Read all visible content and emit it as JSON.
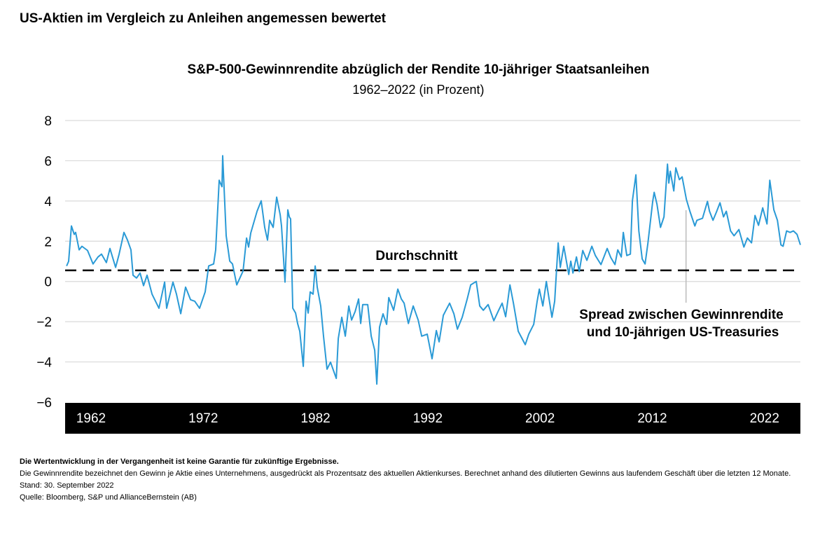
{
  "page_title": "US-Aktien im Vergleich zu Anleihen angemessen bewertet",
  "footer": {
    "disclaimer": "Die Wertentwicklung in der Vergangenheit ist keine Garantie für zukünftige Ergebnisse.",
    "note": "Die Gewinnrendite bezeichnet den Gewinn je Aktie eines Unternehmens, ausgedrückt als Prozentsatz des aktuellen Aktienkurses. Berechnet anhand des dilutierten Gewinns aus laufendem Geschäft über die letzten 12 Monate.",
    "date": "Stand: 30. September 2022",
    "source": "Quelle: Bloomberg, S&P und AllianceBernstein (AB)"
  },
  "chart_data": {
    "type": "line",
    "title": "S&P-500-Gewinnrendite abzüglich der Rendite 10-jähriger Staatsanleihen",
    "subtitle": "1962–2022 (in Prozent)",
    "xlabel": "",
    "ylabel": "",
    "xlim": [
      1962,
      2022.75
    ],
    "ylim": [
      -6,
      8
    ],
    "y_ticks": [
      "8",
      "6",
      "4",
      "2",
      "0",
      "−2",
      "−4",
      "−6"
    ],
    "y_tick_values": [
      8,
      6,
      4,
      2,
      0,
      -2,
      -4,
      -6
    ],
    "x_ticks": [
      "1962",
      "1972",
      "1982",
      "1992",
      "2002",
      "2012",
      "2022"
    ],
    "grid": "horizontal",
    "line_color": "#2a9ad6",
    "average": {
      "label": "Durchschnitt",
      "value": 0.55
    },
    "annotation": {
      "line1": "Spread zwischen Gewinnrendite",
      "line2": "und 10-jährigen US-Treasuries",
      "x": 2013.3
    },
    "series": [
      {
        "points": [
          [
            1962.12,
            0.77
          ],
          [
            1962.29,
            1.0
          ],
          [
            1962.52,
            2.76
          ],
          [
            1962.75,
            2.34
          ],
          [
            1962.87,
            2.44
          ],
          [
            1963.16,
            1.57
          ],
          [
            1963.39,
            1.75
          ],
          [
            1963.85,
            1.54
          ],
          [
            1964.31,
            0.87
          ],
          [
            1964.72,
            1.22
          ],
          [
            1965.01,
            1.36
          ],
          [
            1965.41,
            0.94
          ],
          [
            1965.7,
            1.64
          ],
          [
            1966.17,
            0.7
          ],
          [
            1966.46,
            1.36
          ],
          [
            1966.86,
            2.44
          ],
          [
            1967.15,
            2.06
          ],
          [
            1967.44,
            1.57
          ],
          [
            1967.61,
            0.31
          ],
          [
            1967.9,
            0.17
          ],
          [
            1968.19,
            0.42
          ],
          [
            1968.48,
            -0.21
          ],
          [
            1968.77,
            0.31
          ],
          [
            1969.18,
            -0.63
          ],
          [
            1969.75,
            -1.33
          ],
          [
            1970.22,
            -0.03
          ],
          [
            1970.39,
            -1.33
          ],
          [
            1970.91,
            -0.03
          ],
          [
            1971.2,
            -0.63
          ],
          [
            1971.55,
            -1.6
          ],
          [
            1971.95,
            -0.28
          ],
          [
            1972.36,
            -0.91
          ],
          [
            1972.71,
            -0.98
          ],
          [
            1973.11,
            -1.33
          ],
          [
            1973.57,
            -0.52
          ],
          [
            1973.86,
            0.77
          ],
          [
            1974.27,
            0.87
          ],
          [
            1974.44,
            1.57
          ],
          [
            1974.73,
            5.03
          ],
          [
            1974.96,
            4.71
          ],
          [
            1975.02,
            6.25
          ],
          [
            1975.31,
            2.27
          ],
          [
            1975.6,
            1.01
          ],
          [
            1975.83,
            0.87
          ],
          [
            1976.18,
            -0.17
          ],
          [
            1976.7,
            0.52
          ],
          [
            1976.99,
            2.16
          ],
          [
            1977.16,
            1.71
          ],
          [
            1977.34,
            2.41
          ],
          [
            1977.86,
            3.49
          ],
          [
            1978.2,
            4.01
          ],
          [
            1978.49,
            2.69
          ],
          [
            1978.72,
            2.06
          ],
          [
            1978.9,
            3.04
          ],
          [
            1979.19,
            2.69
          ],
          [
            1979.48,
            4.19
          ],
          [
            1979.77,
            3.32
          ],
          [
            1979.88,
            2.76
          ],
          [
            1980.17,
            -0.03
          ],
          [
            1980.4,
            3.56
          ],
          [
            1980.52,
            3.21
          ],
          [
            1980.63,
            3.11
          ],
          [
            1980.81,
            -1.33
          ],
          [
            1981.04,
            -1.57
          ],
          [
            1981.21,
            -2.09
          ],
          [
            1981.39,
            -2.48
          ],
          [
            1981.68,
            -4.22
          ],
          [
            1981.91,
            -0.98
          ],
          [
            1982.08,
            -1.57
          ],
          [
            1982.25,
            -0.52
          ],
          [
            1982.49,
            -0.63
          ],
          [
            1982.66,
            0.77
          ],
          [
            1982.83,
            -0.28
          ],
          [
            1983.12,
            -1.22
          ],
          [
            1983.35,
            -2.72
          ],
          [
            1983.64,
            -4.36
          ],
          [
            1983.93,
            -4.01
          ],
          [
            1984.4,
            -4.82
          ],
          [
            1984.57,
            -2.83
          ],
          [
            1984.86,
            -1.78
          ],
          [
            1985.15,
            -2.72
          ],
          [
            1985.44,
            -1.22
          ],
          [
            1985.67,
            -1.92
          ],
          [
            1985.96,
            -1.5
          ],
          [
            1986.25,
            -0.87
          ],
          [
            1986.42,
            -2.09
          ],
          [
            1986.59,
            -1.15
          ],
          [
            1987.0,
            -1.15
          ],
          [
            1987.29,
            -2.72
          ],
          [
            1987.58,
            -3.42
          ],
          [
            1987.75,
            -5.1
          ],
          [
            1987.98,
            -2.27
          ],
          [
            1988.27,
            -1.61
          ],
          [
            1988.56,
            -2.13
          ],
          [
            1988.74,
            -0.8
          ],
          [
            1989.14,
            -1.43
          ],
          [
            1989.49,
            -0.38
          ],
          [
            1989.78,
            -0.87
          ],
          [
            1990.01,
            -1.08
          ],
          [
            1990.36,
            -2.09
          ],
          [
            1990.76,
            -1.22
          ],
          [
            1991.17,
            -1.92
          ],
          [
            1991.46,
            -2.72
          ],
          [
            1991.92,
            -2.62
          ],
          [
            1992.32,
            -3.84
          ],
          [
            1992.67,
            -2.44
          ],
          [
            1992.9,
            -3.0
          ],
          [
            1993.25,
            -1.68
          ],
          [
            1993.77,
            -1.08
          ],
          [
            1994.12,
            -1.61
          ],
          [
            1994.41,
            -2.37
          ],
          [
            1994.81,
            -1.78
          ],
          [
            1995.22,
            -0.87
          ],
          [
            1995.51,
            -0.17
          ],
          [
            1995.97,
            0.0
          ],
          [
            1996.26,
            -1.22
          ],
          [
            1996.55,
            -1.43
          ],
          [
            1996.95,
            -1.15
          ],
          [
            1997.42,
            -1.95
          ],
          [
            1997.82,
            -1.43
          ],
          [
            1998.11,
            -1.08
          ],
          [
            1998.4,
            -1.75
          ],
          [
            1998.75,
            -0.17
          ],
          [
            1999.04,
            -1.08
          ],
          [
            1999.44,
            -2.48
          ],
          [
            2000.02,
            -3.14
          ],
          [
            2000.31,
            -2.62
          ],
          [
            2000.72,
            -2.13
          ],
          [
            2001.0,
            -0.98
          ],
          [
            2001.18,
            -0.38
          ],
          [
            2001.47,
            -1.22
          ],
          [
            2001.76,
            0.0
          ],
          [
            2002.22,
            -1.78
          ],
          [
            2002.45,
            -0.98
          ],
          [
            2002.74,
            1.92
          ],
          [
            2002.91,
            0.7
          ],
          [
            2003.2,
            1.75
          ],
          [
            2003.61,
            0.35
          ],
          [
            2003.78,
            1.01
          ],
          [
            2003.96,
            0.42
          ],
          [
            2004.25,
            1.22
          ],
          [
            2004.48,
            0.49
          ],
          [
            2004.77,
            1.54
          ],
          [
            2005.11,
            1.05
          ],
          [
            2005.52,
            1.75
          ],
          [
            2005.81,
            1.29
          ],
          [
            2006.27,
            0.84
          ],
          [
            2006.79,
            1.64
          ],
          [
            2007.08,
            1.19
          ],
          [
            2007.43,
            0.84
          ],
          [
            2007.66,
            1.57
          ],
          [
            2007.95,
            1.22
          ],
          [
            2008.12,
            2.44
          ],
          [
            2008.41,
            1.29
          ],
          [
            2008.7,
            1.36
          ],
          [
            2008.87,
            4.01
          ],
          [
            2009.16,
            5.3
          ],
          [
            2009.4,
            2.51
          ],
          [
            2009.68,
            1.12
          ],
          [
            2009.92,
            0.87
          ],
          [
            2010.15,
            1.89
          ],
          [
            2010.55,
            3.98
          ],
          [
            2010.67,
            4.43
          ],
          [
            2010.9,
            3.84
          ],
          [
            2011.19,
            2.69
          ],
          [
            2011.48,
            3.21
          ],
          [
            2011.77,
            5.83
          ],
          [
            2011.88,
            4.89
          ],
          [
            2012.0,
            5.48
          ],
          [
            2012.29,
            4.5
          ],
          [
            2012.46,
            5.65
          ],
          [
            2012.75,
            5.06
          ],
          [
            2012.98,
            5.2
          ],
          [
            2013.33,
            4.08
          ],
          [
            2013.62,
            3.49
          ],
          [
            2014.03,
            2.76
          ],
          [
            2014.2,
            3.04
          ],
          [
            2014.66,
            3.14
          ],
          [
            2015.07,
            3.98
          ],
          [
            2015.24,
            3.49
          ],
          [
            2015.53,
            3.04
          ],
          [
            2015.82,
            3.46
          ],
          [
            2016.11,
            3.91
          ],
          [
            2016.4,
            3.21
          ],
          [
            2016.63,
            3.49
          ],
          [
            2016.98,
            2.51
          ],
          [
            2017.27,
            2.27
          ],
          [
            2017.67,
            2.58
          ],
          [
            2018.08,
            1.71
          ],
          [
            2018.37,
            2.16
          ],
          [
            2018.71,
            1.92
          ],
          [
            2019.0,
            3.28
          ],
          [
            2019.29,
            2.79
          ],
          [
            2019.64,
            3.66
          ],
          [
            2019.99,
            2.86
          ],
          [
            2020.22,
            5.03
          ],
          [
            2020.56,
            3.56
          ],
          [
            2020.85,
            3.04
          ],
          [
            2021.14,
            1.82
          ],
          [
            2021.32,
            1.75
          ],
          [
            2021.61,
            2.51
          ],
          [
            2021.9,
            2.44
          ],
          [
            2022.18,
            2.51
          ],
          [
            2022.47,
            2.34
          ],
          [
            2022.75,
            1.82
          ]
        ]
      }
    ]
  }
}
